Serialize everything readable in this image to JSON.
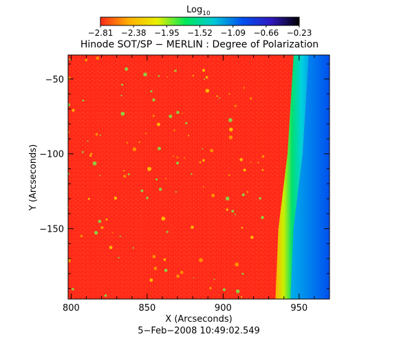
{
  "colorbar": {
    "label": "Log",
    "label_sub": "10",
    "ticks": [
      "−2.81",
      "−2.38",
      "−1.95",
      "−1.52",
      "−1.09",
      "−0.66",
      "−0.23"
    ],
    "range": [
      -2.81,
      -0.23
    ],
    "colormap": [
      "#ff2a1a",
      "#ffb000",
      "#e8f000",
      "#00e85a",
      "#00c8d8",
      "#0050f0",
      "#3018c0",
      "#000000"
    ]
  },
  "chart_data": {
    "type": "heatmap",
    "title": "Hinode SOT/SP − MERLIN : Degree of Polarization",
    "xlabel": "X (Arcseconds)",
    "ylabel": "Y (Arcseconds)",
    "x_ticks": [
      800,
      850,
      900,
      950
    ],
    "y_ticks": [
      -50,
      -100,
      -150
    ],
    "xlim": [
      798,
      970
    ],
    "ylim": [
      -197,
      -34
    ],
    "limb_x": [
      {
        "y": -34,
        "x": 950
      },
      {
        "y": -100,
        "x": 946
      },
      {
        "y": -150,
        "x": 940
      },
      {
        "y": -197,
        "x": 938
      }
    ],
    "disk_value": -2.81,
    "offlimb_value": -0.66,
    "date": "5−Feb−2008 10:49:02.549"
  }
}
